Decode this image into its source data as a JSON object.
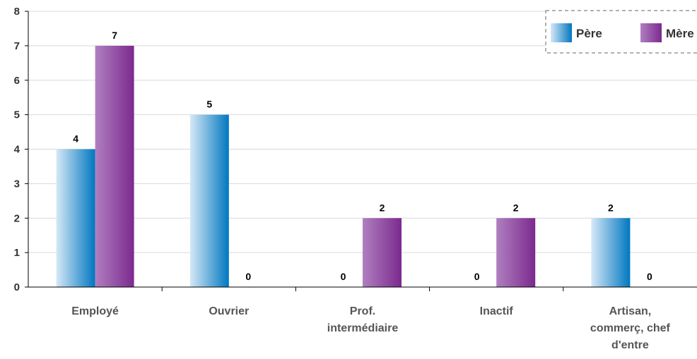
{
  "chart_data": {
    "type": "bar",
    "categories": [
      [
        "Employé"
      ],
      [
        "Ouvrier"
      ],
      [
        "Prof.",
        "intermédiaire"
      ],
      [
        "Inactif"
      ],
      [
        "Artisan,",
        "commerç, chef",
        "d'entre"
      ]
    ],
    "series": [
      {
        "name": "Père",
        "values": [
          4,
          5,
          0,
          0,
          2
        ],
        "color_light": "#d6e8f7",
        "color_dark": "#0077c0"
      },
      {
        "name": "Mère",
        "values": [
          7,
          0,
          2,
          2,
          0
        ],
        "color_light": "#b07fc0",
        "color_dark": "#7b2a8e"
      }
    ],
    "ylim": [
      0,
      8
    ],
    "yticks": [
      0,
      1,
      2,
      3,
      4,
      5,
      6,
      7,
      8
    ],
    "grid": true,
    "legend": "top-right",
    "title": "",
    "xlabel": "",
    "ylabel": ""
  }
}
